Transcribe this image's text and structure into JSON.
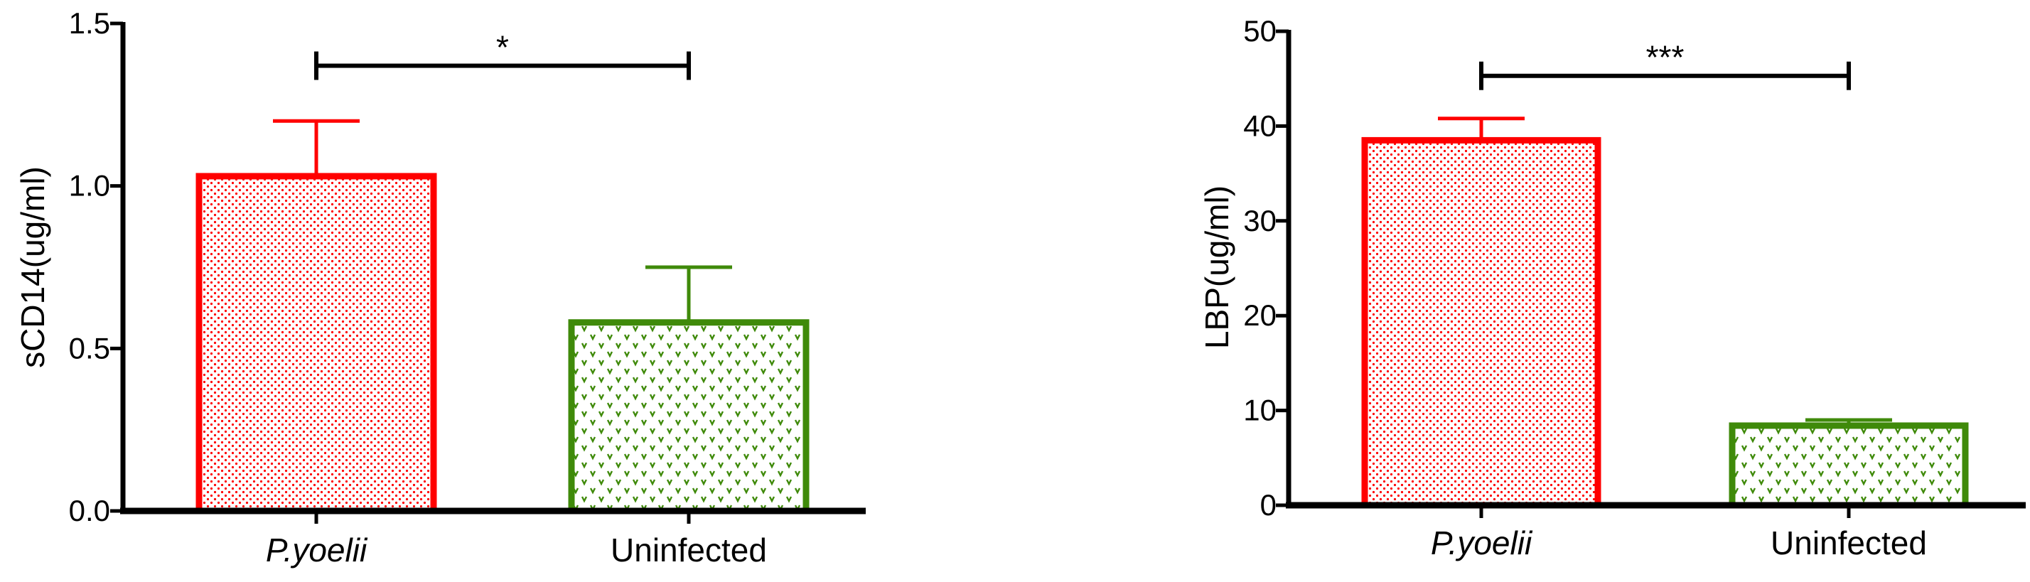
{
  "colors": {
    "red": "#ff0000",
    "green": "#3f8a0a",
    "axis": "#000000"
  },
  "chart_data": [
    {
      "type": "bar",
      "ylabel": "sCD14(ug/ml)",
      "ylim": [
        0,
        1.5
      ],
      "yticks": [
        0,
        0.5,
        1.0,
        1.5
      ],
      "ytick_labels": [
        "0.0",
        "0.5",
        "1.0",
        "1.5"
      ],
      "categories": [
        "P.yoelii",
        "Uninfected"
      ],
      "series": [
        {
          "values": [
            1.03,
            0.58
          ],
          "errors": [
            0.17,
            0.17
          ]
        }
      ],
      "bar_colors": [
        "#ff0000",
        "#3f8a0a"
      ],
      "significance": {
        "label": "*",
        "between": [
          0,
          1
        ],
        "y": 1.37
      }
    },
    {
      "type": "bar",
      "ylabel": "LBP(ug/ml)",
      "ylim": [
        0,
        50
      ],
      "yticks": [
        0,
        10,
        20,
        30,
        40,
        50
      ],
      "ytick_labels": [
        "0",
        "10",
        "20",
        "30",
        "40",
        "50"
      ],
      "categories": [
        "P.yoelii",
        "Uninfected"
      ],
      "series": [
        {
          "values": [
            38.5,
            8.4
          ],
          "errors": [
            2.3,
            0.6
          ]
        }
      ],
      "bar_colors": [
        "#ff0000",
        "#3f8a0a"
      ],
      "significance": {
        "label": "***",
        "between": [
          0,
          1
        ],
        "y": 45.3
      }
    }
  ]
}
